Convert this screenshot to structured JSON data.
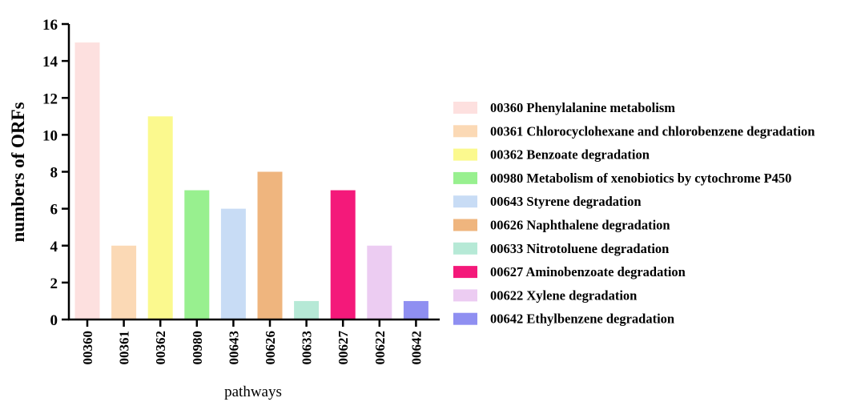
{
  "chart_data": {
    "type": "bar",
    "title": "",
    "xlabel": "pathways",
    "ylabel": "numbers of ORFs",
    "ylim": [
      0,
      16
    ],
    "yticks": [
      0,
      2,
      4,
      6,
      8,
      10,
      12,
      14,
      16
    ],
    "categories": [
      "00360",
      "00361",
      "00362",
      "00980",
      "00643",
      "00626",
      "00633",
      "00627",
      "00622",
      "00642"
    ],
    "values": [
      15,
      4,
      11,
      7,
      6,
      8,
      1,
      7,
      4,
      1
    ],
    "colors": [
      "#fde0df",
      "#fbd9b5",
      "#fbf98e",
      "#98f08f",
      "#c8dcf5",
      "#efb57e",
      "#b6e9d6",
      "#f4197a",
      "#ecccf2",
      "#8f8ff1"
    ],
    "legend": [
      "00360 Phenylalanine metabolism",
      "00361 Chlorocyclohexane and chlorobenzene degradation",
      "00362 Benzoate degradation",
      "00980 Metabolism of xenobiotics by cytochrome P450",
      "00643 Styrene degradation",
      "00626 Naphthalene degradation",
      "00633 Nitrotoluene degradation",
      "00627 Aminobenzoate degradation",
      "00622 Xylene degradation",
      "00642 Ethylbenzene degradation"
    ],
    "legend_position": "right",
    "grid": false
  }
}
